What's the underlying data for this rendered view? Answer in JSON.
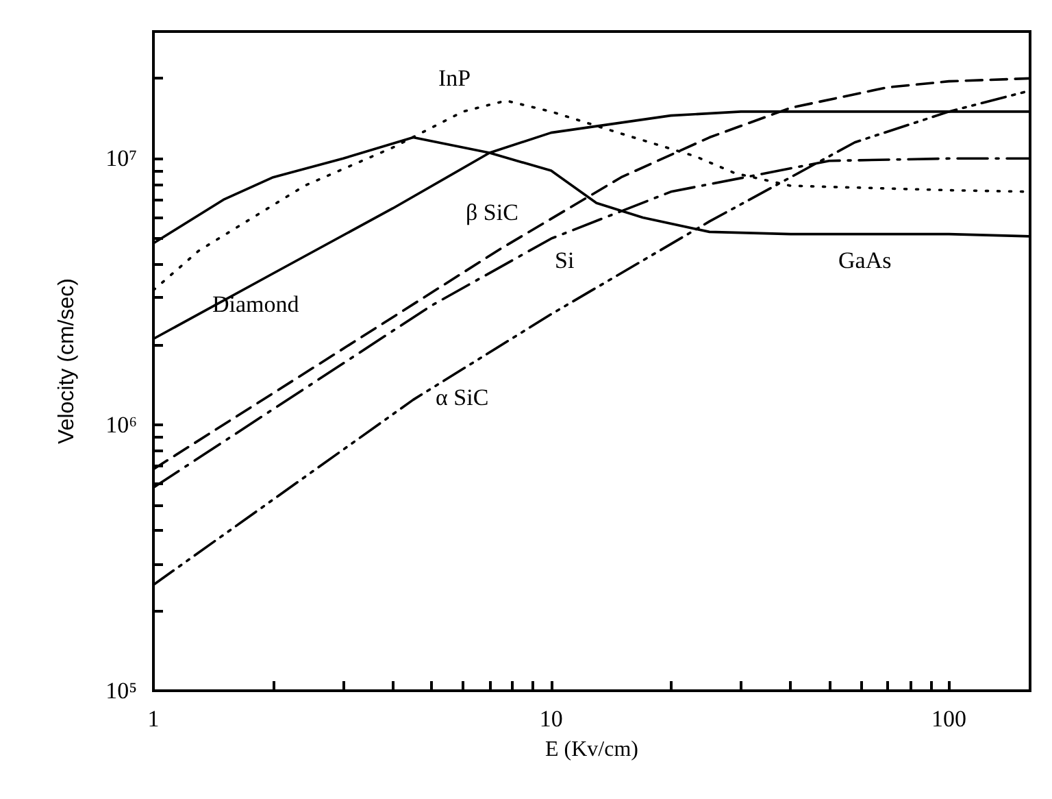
{
  "chart_data": {
    "type": "line",
    "xlabel": "E (Kv/cm)",
    "ylabel": "Velocity (cm/sec)",
    "log": "xy",
    "grid": false,
    "legend": false,
    "marker": "none",
    "xlim": [
      1,
      160
    ],
    "ylim": [
      100000,
      30000000
    ],
    "xticks": [
      1,
      {
        "value": 2,
        "label": null
      },
      {
        "value": 3,
        "label": null
      },
      {
        "value": 4,
        "label": null
      },
      {
        "value": 5,
        "label": null
      },
      {
        "value": 6,
        "label": null
      },
      {
        "value": 7,
        "label": null
      },
      {
        "value": 8,
        "label": null
      },
      {
        "value": 9,
        "label": null
      },
      10,
      {
        "value": 20,
        "label": null
      },
      {
        "value": 30,
        "label": null
      },
      {
        "value": 40,
        "label": null
      },
      {
        "value": 50,
        "label": null
      },
      {
        "value": 60,
        "label": null
      },
      {
        "value": 70,
        "label": null
      },
      {
        "value": 80,
        "label": null
      },
      {
        "value": 90,
        "label": null
      },
      100
    ],
    "yticks": [
      {
        "value": 100000,
        "label": "10⁵"
      },
      {
        "value": 200000,
        "label": null
      },
      {
        "value": 300000,
        "label": null
      },
      {
        "value": 400000,
        "label": null
      },
      {
        "value": 500000,
        "label": null
      },
      {
        "value": 600000,
        "label": null
      },
      {
        "value": 700000,
        "label": null
      },
      {
        "value": 800000,
        "label": null
      },
      {
        "value": 900000,
        "label": null
      },
      {
        "value": 1000000,
        "label": "10⁶"
      },
      {
        "value": 2000000,
        "label": null
      },
      {
        "value": 3000000,
        "label": null
      },
      {
        "value": 4000000,
        "label": null
      },
      {
        "value": 5000000,
        "label": null
      },
      {
        "value": 6000000,
        "label": null
      },
      {
        "value": 7000000,
        "label": null
      },
      {
        "value": 8000000,
        "label": null
      },
      {
        "value": 9000000,
        "label": null
      },
      {
        "value": 10000000,
        "label": "10⁷"
      },
      {
        "value": 20000000,
        "label": null
      }
    ],
    "series": [
      {
        "name": "Diamond",
        "color": "#000000",
        "line_style": "solid",
        "x": [
          1,
          2,
          4,
          7,
          10,
          20,
          30,
          100,
          160
        ],
        "values": [
          2100000,
          3700000,
          6500000,
          10500000,
          12500000,
          14500000,
          15000000,
          15000000,
          15000000
        ]
      },
      {
        "name": "GaAs",
        "color": "#000000",
        "line_style": "solid",
        "x": [
          1,
          1.5,
          2,
          3,
          4.5,
          7,
          10,
          13,
          17,
          25,
          40,
          100,
          160
        ],
        "values": [
          4800000,
          7000000,
          8500000,
          10000000,
          12000000,
          10500000,
          9000000,
          6800000,
          6000000,
          5300000,
          5200000,
          5200000,
          5100000
        ]
      },
      {
        "name": "InP",
        "color": "#000000",
        "line_style": "dotted",
        "x": [
          1,
          1.3,
          2.4,
          4,
          6,
          7.7,
          10,
          15,
          23,
          29,
          40,
          100,
          160
        ],
        "values": [
          3200000,
          4500000,
          7900000,
          11000000,
          15000000,
          16500000,
          15000000,
          12400000,
          10200000,
          8800000,
          7900000,
          7600000,
          7500000
        ]
      },
      {
        "name": "β SiC",
        "color": "#000000",
        "line_style": "dashed",
        "x": [
          1,
          7.5,
          15,
          25,
          40,
          70,
          100,
          160
        ],
        "values": [
          680000,
          4600000,
          8500000,
          12000000,
          15500000,
          18500000,
          19500000,
          20000000
        ]
      },
      {
        "name": "Si",
        "color": "#000000",
        "line_style": "dashdot",
        "x": [
          1,
          5,
          10,
          20,
          32,
          50,
          100,
          160
        ],
        "values": [
          580000,
          2800000,
          5000000,
          7500000,
          8600000,
          9800000,
          10000000,
          10000000
        ]
      },
      {
        "name": "α SiC",
        "color": "#000000",
        "line_style": "dashdotdot",
        "x": [
          1,
          4.5,
          10,
          25,
          58,
          100,
          160
        ],
        "values": [
          250000,
          1240000,
          2600000,
          5800000,
          11500000,
          15000000,
          18000000
        ]
      }
    ]
  }
}
